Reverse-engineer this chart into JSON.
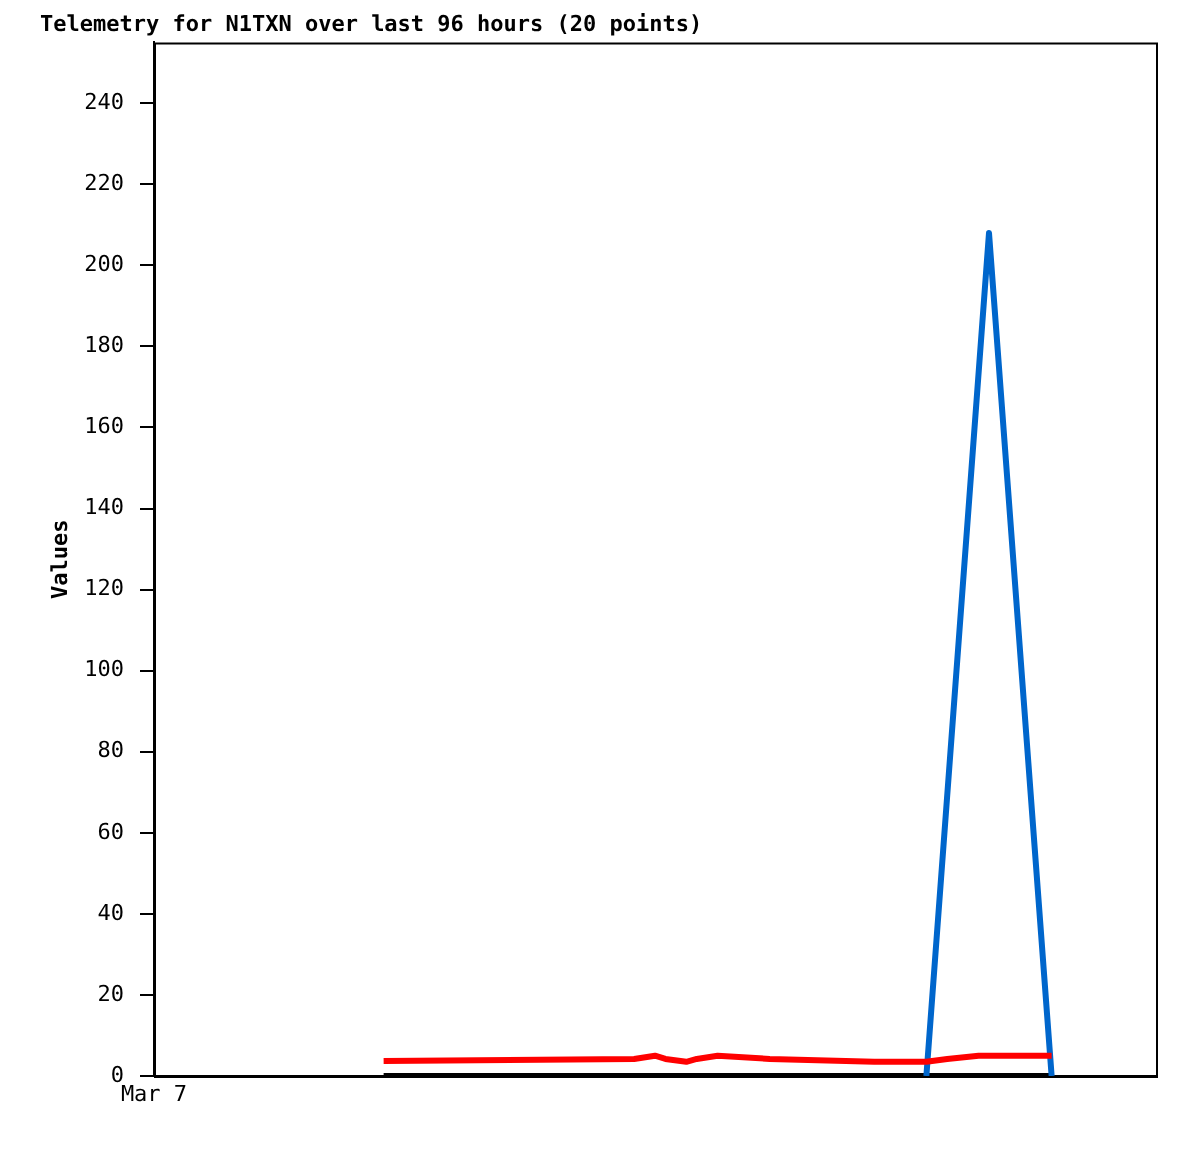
{
  "chart_data": {
    "type": "line",
    "title": "Telemetry for N1TXN over last 96 hours (20 points)",
    "ylabel": "Values",
    "categories": [
      "Mar 7",
      null,
      null,
      null,
      null,
      null,
      null,
      null,
      null,
      null,
      null,
      null,
      null,
      null,
      null,
      null,
      null,
      null,
      null,
      null,
      null,
      null,
      null,
      null,
      null,
      null,
      null,
      null,
      null,
      null,
      null,
      null,
      null,
      null,
      null,
      null,
      null,
      null,
      null,
      null,
      null,
      null,
      null,
      null,
      null,
      null,
      null,
      null,
      null,
      null,
      null,
      null,
      null,
      null,
      null,
      null,
      null,
      null,
      null,
      null,
      null,
      null,
      null,
      null,
      null,
      null,
      null,
      null,
      null,
      null,
      null,
      null,
      null,
      null,
      null,
      null,
      null,
      null,
      null,
      null,
      null,
      null,
      null,
      null,
      null,
      null,
      null,
      null,
      null,
      null,
      null,
      null,
      null,
      null,
      null,
      null,
      null
    ],
    "ylim": [
      0,
      255
    ],
    "yticks": [
      0,
      20,
      40,
      60,
      80,
      100,
      120,
      140,
      160,
      180,
      200,
      220,
      240
    ],
    "legend": false,
    "marker": "none",
    "line_style": "solid",
    "series": [
      {
        "color": "#ff0000",
        "values": [
          null,
          null,
          null,
          null,
          null,
          null,
          null,
          null,
          null,
          null,
          null,
          null,
          null,
          null,
          null,
          null,
          null,
          null,
          null,
          null,
          null,
          null,
          3.7,
          null,
          null,
          null,
          null,
          null,
          null,
          null,
          null,
          null,
          null,
          null,
          null,
          null,
          null,
          null,
          null,
          null,
          null,
          null,
          null,
          null,
          null,
          null,
          4.2,
          null,
          5,
          4.2,
          null,
          3.5,
          4.2,
          null,
          5,
          null,
          null,
          null,
          null,
          4.2,
          null,
          null,
          null,
          null,
          null,
          null,
          null,
          null,
          null,
          3.5,
          null,
          null,
          null,
          null,
          3.5,
          null,
          4.2,
          null,
          null,
          5,
          null,
          null,
          null,
          null,
          null,
          null,
          5,
          null,
          null,
          null,
          null,
          null,
          null,
          null,
          null,
          null,
          null
        ]
      },
      {
        "color": "#0066cc",
        "values": [
          null,
          null,
          null,
          null,
          null,
          null,
          null,
          null,
          null,
          null,
          null,
          null,
          null,
          null,
          null,
          null,
          null,
          null,
          null,
          null,
          null,
          null,
          null,
          null,
          null,
          null,
          null,
          null,
          null,
          null,
          null,
          null,
          null,
          null,
          null,
          null,
          null,
          null,
          null,
          null,
          null,
          null,
          null,
          null,
          null,
          null,
          null,
          null,
          null,
          null,
          null,
          null,
          null,
          null,
          null,
          null,
          null,
          null,
          null,
          null,
          null,
          null,
          null,
          null,
          null,
          null,
          null,
          null,
          null,
          null,
          null,
          null,
          null,
          null,
          0,
          null,
          null,
          null,
          null,
          null,
          208,
          null,
          null,
          null,
          null,
          null,
          0,
          null,
          null,
          null,
          null,
          null,
          null,
          null,
          null,
          null,
          null
        ]
      },
      {
        "color": "#000000",
        "values": [
          null,
          null,
          null,
          null,
          null,
          null,
          null,
          null,
          null,
          null,
          null,
          null,
          null,
          null,
          null,
          null,
          null,
          null,
          null,
          null,
          null,
          null,
          0,
          null,
          null,
          null,
          null,
          null,
          null,
          null,
          null,
          null,
          null,
          null,
          null,
          null,
          null,
          null,
          null,
          null,
          null,
          null,
          null,
          null,
          null,
          null,
          null,
          null,
          null,
          null,
          null,
          null,
          null,
          null,
          null,
          null,
          null,
          null,
          null,
          null,
          null,
          null,
          null,
          null,
          null,
          null,
          null,
          null,
          null,
          null,
          null,
          null,
          null,
          null,
          null,
          null,
          null,
          null,
          null,
          null,
          null,
          null,
          null,
          null,
          null,
          null,
          0,
          null,
          null,
          null,
          null,
          null,
          null,
          null,
          null,
          null,
          null
        ]
      }
    ]
  }
}
